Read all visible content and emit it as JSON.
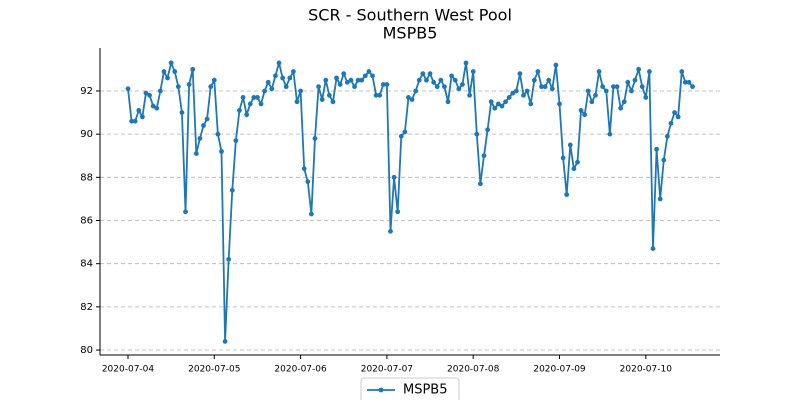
{
  "chart_data": {
    "type": "line",
    "title": "SCR - Southern West Pool",
    "subtitle": "MSPB5",
    "x": [
      "2020-07-04 00:00",
      "2020-07-04 01:00",
      "2020-07-04 02:00",
      "2020-07-04 03:00",
      "2020-07-04 04:00",
      "2020-07-04 05:00",
      "2020-07-04 06:00",
      "2020-07-04 07:00",
      "2020-07-04 08:00",
      "2020-07-04 09:00",
      "2020-07-04 10:00",
      "2020-07-04 11:00",
      "2020-07-04 12:00",
      "2020-07-04 13:00",
      "2020-07-04 14:00",
      "2020-07-04 15:00",
      "2020-07-04 16:00",
      "2020-07-04 17:00",
      "2020-07-04 18:00",
      "2020-07-04 19:00",
      "2020-07-04 20:00",
      "2020-07-04 21:00",
      "2020-07-04 22:00",
      "2020-07-04 23:00",
      "2020-07-05 00:00",
      "2020-07-05 01:00",
      "2020-07-05 02:00",
      "2020-07-05 03:00",
      "2020-07-05 04:00",
      "2020-07-05 05:00",
      "2020-07-05 06:00",
      "2020-07-05 07:00",
      "2020-07-05 08:00",
      "2020-07-05 09:00",
      "2020-07-05 10:00",
      "2020-07-05 11:00",
      "2020-07-05 12:00",
      "2020-07-05 13:00",
      "2020-07-05 14:00",
      "2020-07-05 15:00",
      "2020-07-05 16:00",
      "2020-07-05 17:00",
      "2020-07-05 18:00",
      "2020-07-05 19:00",
      "2020-07-05 20:00",
      "2020-07-05 21:00",
      "2020-07-05 22:00",
      "2020-07-05 23:00",
      "2020-07-06 00:00",
      "2020-07-06 01:00",
      "2020-07-06 02:00",
      "2020-07-06 03:00",
      "2020-07-06 04:00",
      "2020-07-06 05:00",
      "2020-07-06 06:00",
      "2020-07-06 07:00",
      "2020-07-06 08:00",
      "2020-07-06 09:00",
      "2020-07-06 10:00",
      "2020-07-06 11:00",
      "2020-07-06 12:00",
      "2020-07-06 13:00",
      "2020-07-06 14:00",
      "2020-07-06 15:00",
      "2020-07-06 16:00",
      "2020-07-06 17:00",
      "2020-07-06 18:00",
      "2020-07-06 19:00",
      "2020-07-06 20:00",
      "2020-07-06 21:00",
      "2020-07-06 22:00",
      "2020-07-06 23:00",
      "2020-07-07 00:00",
      "2020-07-07 01:00",
      "2020-07-07 02:00",
      "2020-07-07 03:00",
      "2020-07-07 04:00",
      "2020-07-07 05:00",
      "2020-07-07 06:00",
      "2020-07-07 07:00",
      "2020-07-07 08:00",
      "2020-07-07 09:00",
      "2020-07-07 10:00",
      "2020-07-07 11:00",
      "2020-07-07 12:00",
      "2020-07-07 13:00",
      "2020-07-07 14:00",
      "2020-07-07 15:00",
      "2020-07-07 16:00",
      "2020-07-07 17:00",
      "2020-07-07 18:00",
      "2020-07-07 19:00",
      "2020-07-07 20:00",
      "2020-07-07 21:00",
      "2020-07-07 22:00",
      "2020-07-07 23:00",
      "2020-07-08 00:00",
      "2020-07-08 01:00",
      "2020-07-08 02:00",
      "2020-07-08 03:00",
      "2020-07-08 04:00",
      "2020-07-08 05:00",
      "2020-07-08 06:00",
      "2020-07-08 07:00",
      "2020-07-08 08:00",
      "2020-07-08 09:00",
      "2020-07-08 10:00",
      "2020-07-08 11:00",
      "2020-07-08 12:00",
      "2020-07-08 13:00",
      "2020-07-08 14:00",
      "2020-07-08 15:00",
      "2020-07-08 16:00",
      "2020-07-08 17:00",
      "2020-07-08 18:00",
      "2020-07-08 19:00",
      "2020-07-08 20:00",
      "2020-07-08 21:00",
      "2020-07-08 22:00",
      "2020-07-08 23:00",
      "2020-07-09 00:00",
      "2020-07-09 01:00",
      "2020-07-09 02:00",
      "2020-07-09 03:00",
      "2020-07-09 04:00",
      "2020-07-09 05:00",
      "2020-07-09 06:00",
      "2020-07-09 07:00",
      "2020-07-09 08:00",
      "2020-07-09 09:00",
      "2020-07-09 10:00",
      "2020-07-09 11:00",
      "2020-07-09 12:00",
      "2020-07-09 13:00",
      "2020-07-09 14:00",
      "2020-07-09 15:00",
      "2020-07-09 16:00",
      "2020-07-09 17:00",
      "2020-07-09 18:00",
      "2020-07-09 19:00",
      "2020-07-09 20:00",
      "2020-07-09 21:00",
      "2020-07-09 22:00",
      "2020-07-09 23:00",
      "2020-07-10 00:00",
      "2020-07-10 01:00",
      "2020-07-10 02:00",
      "2020-07-10 03:00",
      "2020-07-10 04:00",
      "2020-07-10 05:00",
      "2020-07-10 06:00",
      "2020-07-10 07:00",
      "2020-07-10 08:00",
      "2020-07-10 09:00",
      "2020-07-10 10:00",
      "2020-07-10 11:00",
      "2020-07-10 12:00",
      "2020-07-10 13:00"
    ],
    "series": [
      {
        "name": "MSPB5",
        "color": "#1f77b4",
        "values": [
          92.1,
          90.6,
          90.6,
          91.1,
          90.8,
          91.9,
          91.8,
          91.3,
          91.2,
          92.0,
          92.9,
          92.6,
          93.3,
          92.9,
          92.2,
          91.0,
          86.4,
          92.3,
          93.0,
          89.1,
          89.8,
          90.4,
          90.7,
          92.2,
          92.5,
          90.0,
          89.2,
          80.4,
          84.2,
          87.4,
          89.7,
          91.1,
          91.7,
          90.9,
          91.4,
          91.7,
          91.7,
          91.4,
          92.0,
          92.4,
          92.1,
          92.7,
          93.3,
          92.6,
          92.2,
          92.6,
          92.9,
          91.5,
          92.0,
          88.4,
          87.8,
          86.3,
          89.8,
          92.2,
          91.6,
          92.5,
          91.8,
          91.5,
          92.6,
          92.3,
          92.8,
          92.4,
          92.5,
          92.2,
          92.5,
          92.5,
          92.7,
          92.9,
          92.7,
          91.8,
          91.8,
          92.3,
          92.3,
          85.5,
          88.0,
          86.4,
          89.9,
          90.1,
          91.7,
          91.6,
          92.0,
          92.5,
          92.8,
          92.5,
          92.8,
          92.4,
          92.2,
          92.5,
          92.2,
          91.5,
          92.7,
          92.5,
          92.1,
          92.3,
          93.3,
          91.8,
          92.9,
          90.0,
          87.7,
          89.0,
          90.2,
          91.5,
          91.2,
          91.4,
          91.3,
          91.5,
          91.7,
          91.9,
          92.0,
          92.8,
          91.8,
          92.0,
          91.4,
          92.5,
          92.9,
          92.2,
          92.2,
          92.5,
          92.1,
          93.2,
          91.4,
          88.9,
          87.2,
          89.5,
          88.4,
          88.7,
          91.1,
          90.9,
          92.0,
          91.5,
          91.8,
          92.9,
          92.2,
          92.0,
          90.0,
          92.2,
          92.2,
          91.2,
          91.5,
          92.4,
          92.0,
          92.5,
          93.0,
          92.2,
          91.7,
          92.9,
          84.7,
          89.3,
          87.0,
          88.8,
          89.9,
          90.5,
          91.0,
          90.8,
          92.9,
          92.4,
          92.4,
          92.2
        ]
      }
    ],
    "xlim": [
      "2020-07-03 16:13",
      "2020-07-10 20:38"
    ],
    "xticks": [
      "2020-07-04",
      "2020-07-05",
      "2020-07-06",
      "2020-07-07",
      "2020-07-08",
      "2020-07-09",
      "2020-07-10"
    ],
    "ylim": [
      79.77,
      93.99
    ],
    "yticks": [
      80,
      82,
      84,
      86,
      88,
      90,
      92
    ],
    "grid": "y",
    "legend": "lower center"
  }
}
